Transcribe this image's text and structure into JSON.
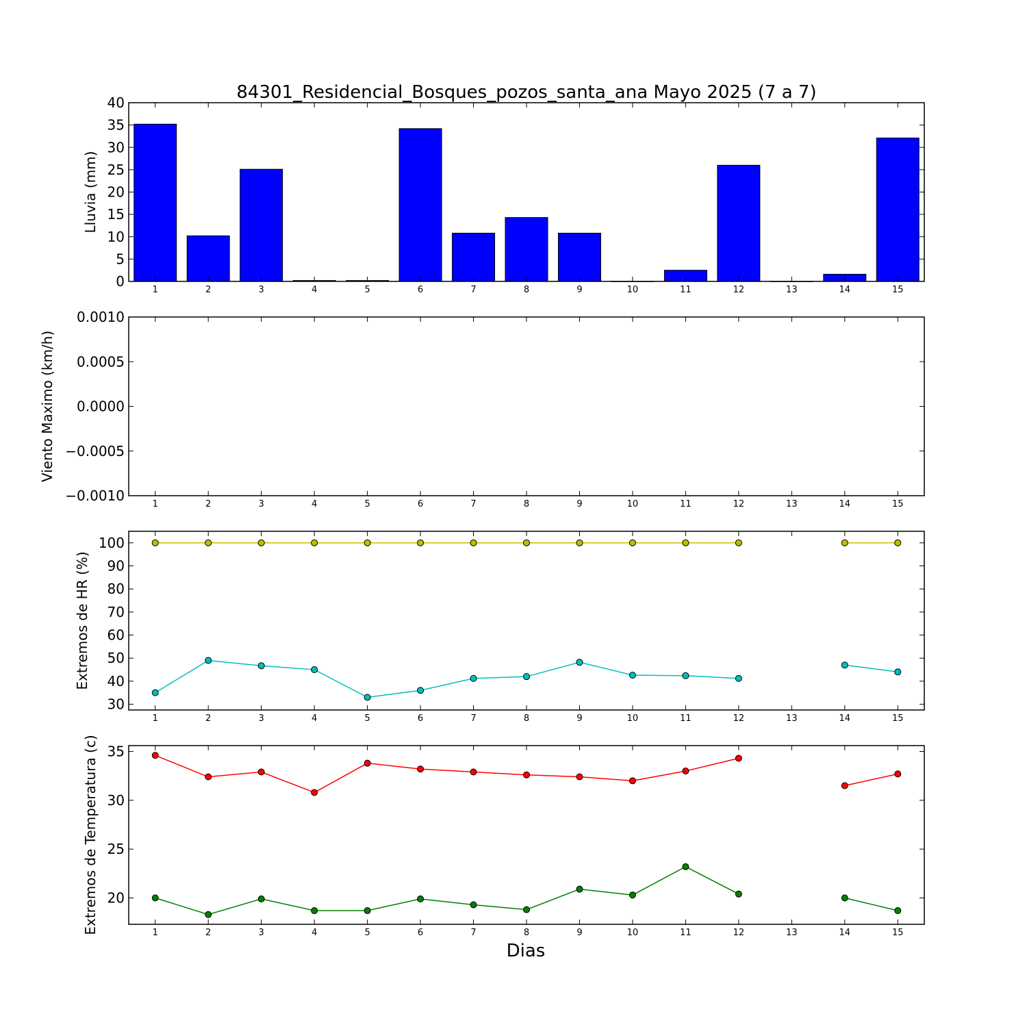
{
  "chart_data": {
    "title": "84301_Residencial_Bosques_pozos_santa_ana Mayo 2025  (7 a 7)",
    "xlabel": "Dias",
    "x_ticks": [
      "1",
      "2",
      "3",
      "4",
      "5",
      "6",
      "7",
      "8",
      "9",
      "10",
      "11",
      "12",
      "13",
      "14",
      "15"
    ],
    "panels": [
      {
        "id": "lluvia",
        "type": "bar",
        "ylabel": "Lluvia (mm)",
        "ylim": [
          0,
          40
        ],
        "y_ticks": [
          "0",
          "5",
          "10",
          "15",
          "20",
          "25",
          "30",
          "35",
          "40"
        ],
        "y_tick_values": [
          0,
          5,
          10,
          15,
          20,
          25,
          30,
          35,
          40
        ],
        "series": [
          {
            "color": "#0000ff",
            "x": [
              1,
              2,
              3,
              4,
              5,
              6,
              7,
              8,
              9,
              10,
              11,
              12,
              13,
              14,
              15
            ],
            "values": [
              35.2,
              10.2,
              25.1,
              0.2,
              0.2,
              34.2,
              10.8,
              14.3,
              10.8,
              0.0,
              2.5,
              26.0,
              0.0,
              1.6,
              32.1
            ]
          }
        ]
      },
      {
        "id": "viento",
        "type": "line",
        "ylabel": "Viento Maximo (km/h)",
        "ylim": [
          -0.001,
          0.001
        ],
        "y_ticks": [
          "0.0010",
          "0.0005",
          "0.0000",
          "−0.0005",
          "−0.0010"
        ],
        "y_tick_values": [
          0.001,
          0.0005,
          0,
          -0.0005,
          -0.001
        ],
        "series": []
      },
      {
        "id": "hr",
        "type": "line",
        "ylabel": "Extremos de HR (%)",
        "ylim": [
          27.5,
          105
        ],
        "y_ticks": [
          "30",
          "40",
          "50",
          "60",
          "70",
          "80",
          "90",
          "100"
        ],
        "y_tick_values": [
          30,
          40,
          50,
          60,
          70,
          80,
          90,
          100
        ],
        "series": [
          {
            "color": "#bfbf00",
            "x": [
              1,
              2,
              3,
              4,
              5,
              6,
              7,
              8,
              9,
              10,
              11,
              12,
              13,
              14,
              15
            ],
            "values": [
              100,
              100,
              100,
              100,
              100,
              100,
              100,
              100,
              100,
              100,
              100,
              100,
              null,
              100,
              100
            ]
          },
          {
            "color": "#00bfbf",
            "x": [
              1,
              2,
              3,
              4,
              5,
              6,
              7,
              8,
              9,
              10,
              11,
              12,
              13,
              14,
              15
            ],
            "values": [
              35,
              49,
              46.7,
              45,
              33,
              36,
              41.2,
              42,
              48.2,
              42.6,
              42.4,
              41.2,
              null,
              47,
              44
            ]
          }
        ]
      },
      {
        "id": "temperatura",
        "type": "line",
        "ylabel": "Extremos de Temperatura (c)",
        "ylim": [
          17.3,
          35.6
        ],
        "y_ticks": [
          "20",
          "25",
          "30",
          "35"
        ],
        "y_tick_values": [
          20,
          25,
          30,
          35
        ],
        "series": [
          {
            "color": "#ff0000",
            "x": [
              1,
              2,
              3,
              4,
              5,
              6,
              7,
              8,
              9,
              10,
              11,
              12,
              13,
              14,
              15
            ],
            "values": [
              34.6,
              32.4,
              32.9,
              30.8,
              33.8,
              33.2,
              32.9,
              32.6,
              32.4,
              32.0,
              33.0,
              34.3,
              null,
              31.5,
              32.7
            ]
          },
          {
            "color": "#008000",
            "x": [
              1,
              2,
              3,
              4,
              5,
              6,
              7,
              8,
              9,
              10,
              11,
              12,
              13,
              14,
              15
            ],
            "values": [
              20.0,
              18.3,
              19.9,
              18.7,
              18.7,
              19.9,
              19.3,
              18.8,
              20.9,
              20.3,
              23.2,
              20.4,
              null,
              20.0,
              18.7
            ]
          }
        ]
      }
    ]
  }
}
